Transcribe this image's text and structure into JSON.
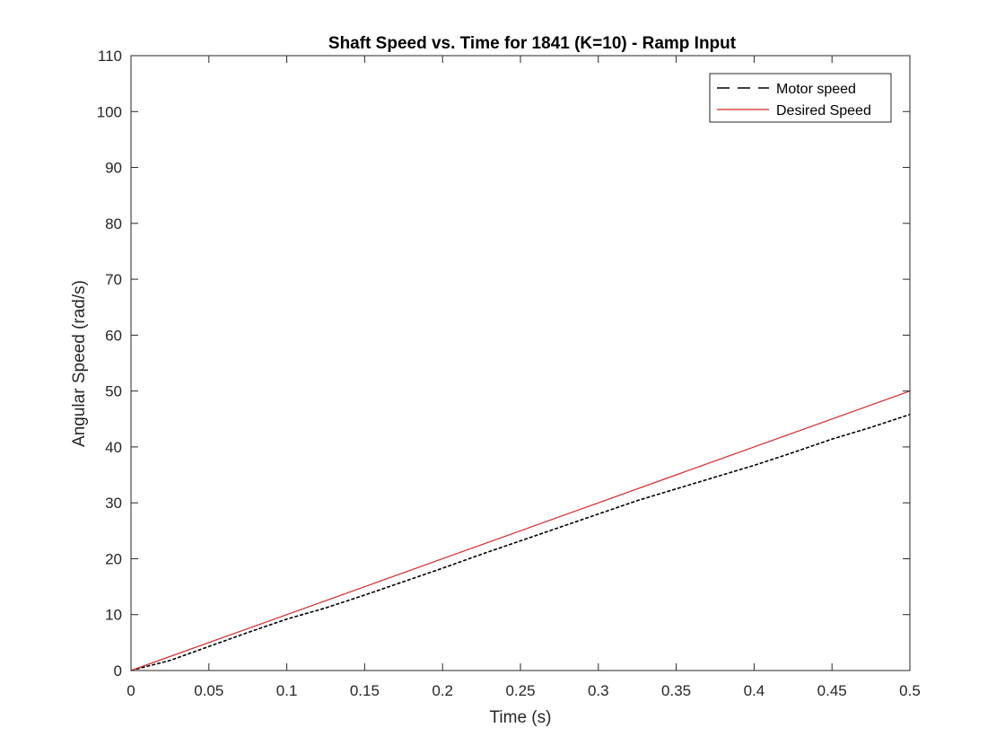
{
  "chart_data": {
    "type": "line",
    "title": "Shaft Speed vs. Time for 1841 (K=10) - Ramp Input",
    "xlabel": "Time (s)",
    "ylabel": "Angular Speed (rad/s)",
    "xlim": [
      0,
      0.5
    ],
    "ylim": [
      0,
      110
    ],
    "x_ticks": [
      "0",
      "0.05",
      "0.1",
      "0.15",
      "0.2",
      "0.25",
      "0.3",
      "0.35",
      "0.4",
      "0.45",
      "0.5"
    ],
    "y_ticks": [
      "0",
      "10",
      "20",
      "30",
      "40",
      "50",
      "60",
      "70",
      "80",
      "90",
      "100",
      "110"
    ],
    "grid": false,
    "legend_position": "top-right",
    "series": [
      {
        "name": "Motor speed",
        "color": "#000000",
        "style": "dashed",
        "x": [
          0,
          0.025,
          0.05,
          0.075,
          0.1,
          0.125,
          0.15,
          0.175,
          0.2,
          0.225,
          0.25,
          0.275,
          0.3,
          0.325,
          0.35,
          0.375,
          0.4,
          0.425,
          0.45,
          0.475,
          0.5
        ],
        "y": [
          0,
          1.8,
          4.3,
          6.8,
          9.2,
          11.2,
          13.5,
          15.9,
          18.3,
          20.8,
          23.2,
          25.6,
          28.0,
          30.4,
          32.5,
          34.6,
          36.7,
          39.0,
          41.4,
          43.5,
          45.8
        ]
      },
      {
        "name": "Desired Speed",
        "color": "#d62728",
        "style": "solid",
        "x": [
          0,
          0.5
        ],
        "y": [
          0,
          50
        ]
      }
    ]
  }
}
